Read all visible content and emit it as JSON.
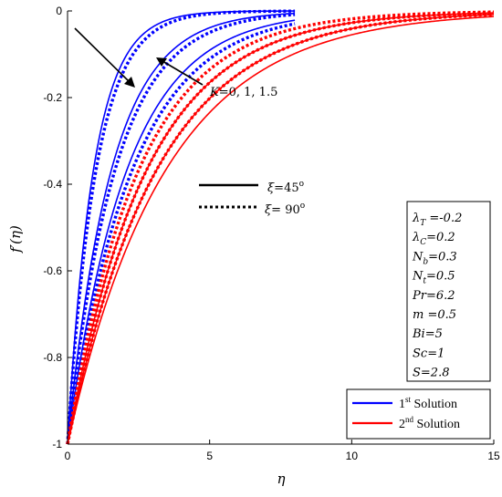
{
  "chart_data": {
    "type": "line",
    "xlabel": "η",
    "ylabel": "f′(η)",
    "xlim": [
      0,
      15
    ],
    "ylim": [
      -1,
      0
    ],
    "x_ticks": [
      "0",
      "5",
      "10",
      "15"
    ],
    "y_ticks": [
      "0",
      "-0.2",
      "-0.4",
      "-0.6",
      "-0.8",
      "-1"
    ],
    "x_tick_values": [
      0,
      5,
      10,
      15
    ],
    "y_tick_values": [
      0,
      -0.2,
      -0.4,
      -0.6,
      -0.8,
      -1
    ],
    "grid": false,
    "series": [
      {
        "group": "1st Solution",
        "K": 0,
        "style": "solid",
        "color": "#0000ff",
        "decay": 1.1,
        "x_max": 8
      },
      {
        "group": "1st Solution",
        "K": 0,
        "style": "dotted",
        "color": "#0000ff",
        "decay": 1.0,
        "x_max": 8
      },
      {
        "group": "1st Solution",
        "K": 1,
        "style": "solid",
        "color": "#0000ff",
        "decay": 0.65,
        "x_max": 8
      },
      {
        "group": "1st Solution",
        "K": 1,
        "style": "dotted",
        "color": "#0000ff",
        "decay": 0.6,
        "x_max": 8
      },
      {
        "group": "1st Solution",
        "K": 1.5,
        "style": "solid",
        "color": "#0000ff",
        "decay": 0.48,
        "x_max": 8
      },
      {
        "group": "1st Solution",
        "K": 1.5,
        "style": "dotted",
        "color": "#0000ff",
        "decay": 0.44,
        "x_max": 8
      },
      {
        "group": "2nd Solution",
        "K": 0,
        "style": "solid",
        "color": "#ff0000",
        "decay": 0.36,
        "x_max": 15
      },
      {
        "group": "2nd Solution",
        "K": 0,
        "style": "dotted",
        "color": "#ff0000",
        "decay": 0.4,
        "x_max": 15
      },
      {
        "group": "2nd Solution",
        "K": 1,
        "style": "solid",
        "color": "#ff0000",
        "decay": 0.32,
        "x_max": 15
      },
      {
        "group": "2nd Solution",
        "K": 1,
        "style": "dotted",
        "color": "#ff0000",
        "decay": 0.36,
        "x_max": 15
      },
      {
        "group": "2nd Solution",
        "K": 1.5,
        "style": "solid",
        "color": "#ff0000",
        "decay": 0.29,
        "x_max": 15
      },
      {
        "group": "2nd Solution",
        "K": 1.5,
        "style": "dotted",
        "color": "#ff0000",
        "decay": 0.32,
        "x_max": 15
      }
    ],
    "annotation": {
      "k_prefix": "K",
      "k_text": "=0, 1, 1.5"
    },
    "xi_legend": {
      "solid_xi": "ξ",
      "solid_val": "=45",
      "solid_sup": "o",
      "dotted_xi": "ξ",
      "dotted_val": "= 90",
      "dotted_sup": "o"
    },
    "params": [
      {
        "sym": "λ",
        "sub": "T",
        "val": " =-0.2"
      },
      {
        "sym": "λ",
        "sub": "C",
        "val": "=0.2"
      },
      {
        "sym": "N",
        "sub": "b",
        "val": "=0.3"
      },
      {
        "sym": "N",
        "sub": "t",
        "val": "=0.5"
      },
      {
        "sym": "Pr",
        "sub": "",
        "val": "=6.2"
      },
      {
        "sym": "m",
        "sub": "",
        "val": " =0.5"
      },
      {
        "sym": " Bi",
        "sub": "",
        "val": "=5"
      },
      {
        "sym": "Sc",
        "sub": "",
        "val": "=1"
      },
      {
        "sym": "S",
        "sub": "",
        "val": "=2.8"
      }
    ],
    "legend": [
      {
        "pre": "1",
        "sup": "st",
        "post": " Solution",
        "color": "#0000ff"
      },
      {
        "pre": "2",
        "sup": "nd",
        "post": " Solution",
        "color": "#ff0000"
      }
    ]
  }
}
